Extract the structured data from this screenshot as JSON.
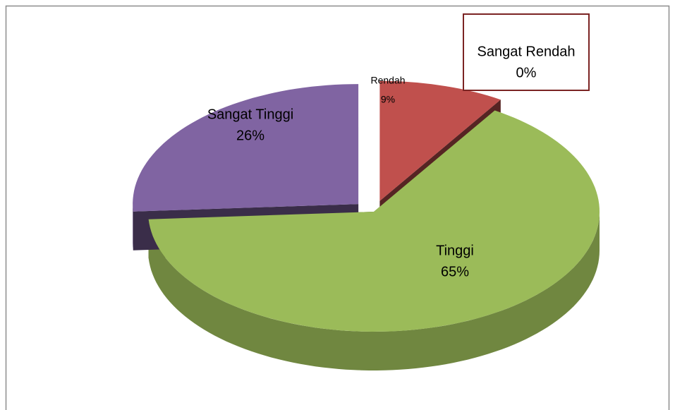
{
  "chart_data": {
    "type": "pie",
    "categories": [
      "Sangat Rendah",
      "Rendah",
      "Tinggi",
      "Sangat Tinggi"
    ],
    "values": [
      0,
      9,
      65,
      26
    ],
    "value_labels": [
      "0%",
      "9%",
      "65%",
      "26%"
    ],
    "colors": [
      "#4f81bd",
      "#c0504d",
      "#9bbb59",
      "#8064a2"
    ],
    "explode": [
      0,
      1,
      0,
      1
    ]
  }
}
